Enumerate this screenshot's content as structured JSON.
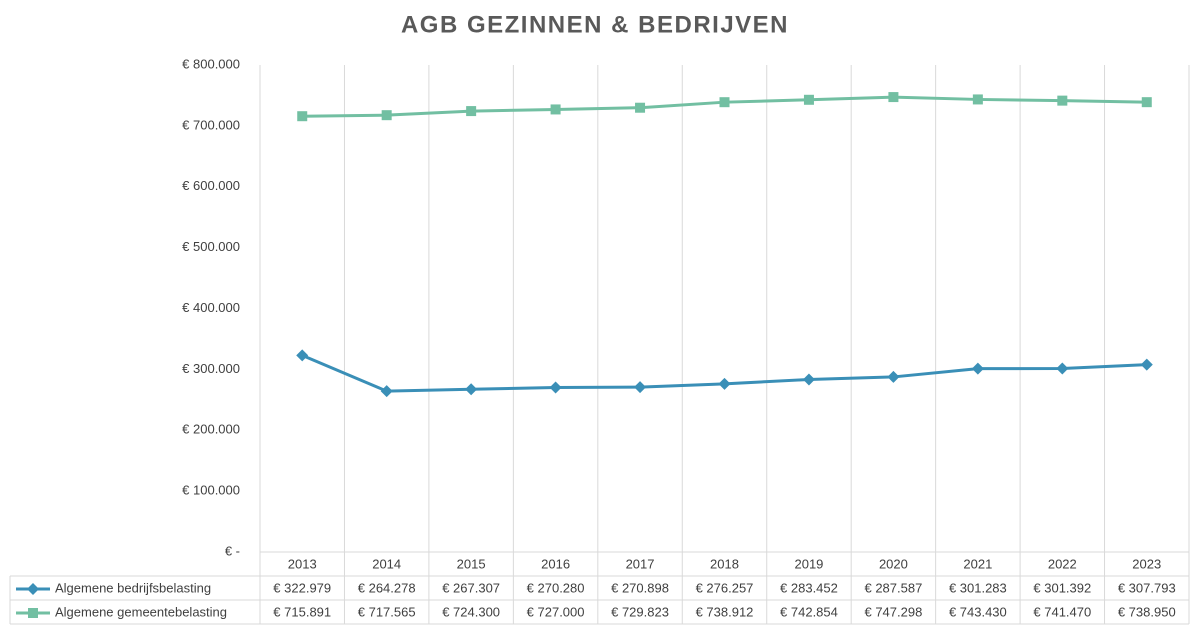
{
  "chart_data": {
    "type": "line",
    "title": "AGB GEZINNEN & BEDRIJVEN",
    "categories": [
      "2013",
      "2014",
      "2015",
      "2016",
      "2017",
      "2018",
      "2019",
      "2020",
      "2021",
      "2022",
      "2023"
    ],
    "series": [
      {
        "name": "Algemene bedrijfsbelasting",
        "color": "#3a8fb7",
        "marker": "diamond",
        "values": [
          322979,
          264278,
          267307,
          270280,
          270898,
          276257,
          283452,
          287587,
          301283,
          301392,
          307793
        ],
        "value_labels": [
          "€ 322.979",
          "€ 264.278",
          "€ 267.307",
          "€ 270.280",
          "€ 270.898",
          "€ 276.257",
          "€ 283.452",
          "€ 287.587",
          "€ 301.283",
          "€ 301.392",
          "€ 307.793"
        ]
      },
      {
        "name": "Algemene gemeentebelasting",
        "color": "#72bfa2",
        "marker": "square",
        "values": [
          715891,
          717565,
          724300,
          727000,
          729823,
          738912,
          742854,
          747298,
          743430,
          741470,
          738950
        ],
        "value_labels": [
          "€ 715.891",
          "€ 717.565",
          "€ 724.300",
          "€ 727.000",
          "€ 729.823",
          "€ 738.912",
          "€ 742.854",
          "€ 747.298",
          "€ 743.430",
          "€ 741.470",
          "€ 738.950"
        ]
      }
    ],
    "ylim": [
      0,
      800000
    ],
    "yticks": [
      {
        "value": 0,
        "label": "€ -"
      },
      {
        "value": 100000,
        "label": "€ 100.000"
      },
      {
        "value": 200000,
        "label": "€ 200.000"
      },
      {
        "value": 300000,
        "label": "€ 300.000"
      },
      {
        "value": 400000,
        "label": "€ 400.000"
      },
      {
        "value": 500000,
        "label": "€ 500.000"
      },
      {
        "value": 600000,
        "label": "€ 600.000"
      },
      {
        "value": 700000,
        "label": "€ 700.000"
      },
      {
        "value": 800000,
        "label": "€ 800.000"
      }
    ]
  }
}
